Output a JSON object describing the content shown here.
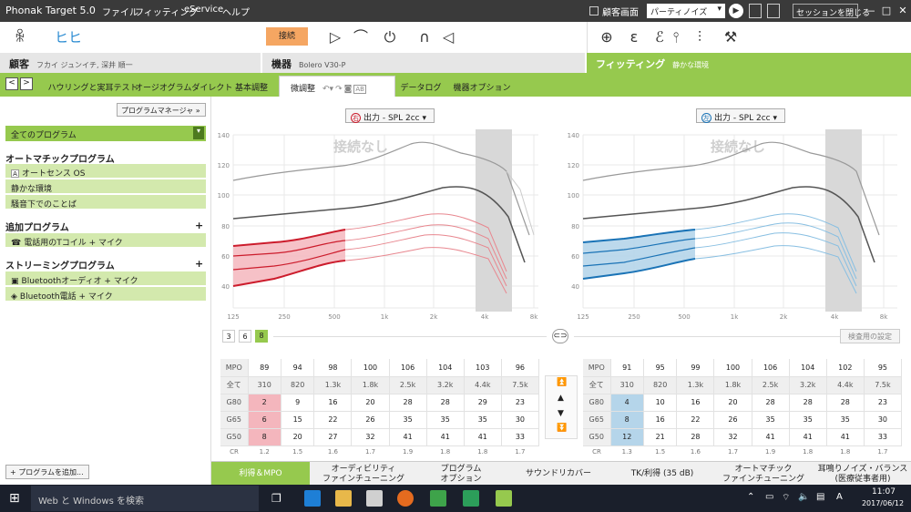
{
  "title_bar": {
    "app": "Phonak Target 5.0",
    "menus": [
      "ファイル",
      "フィッティング",
      "eService",
      "ヘルプ"
    ],
    "client_screen": "顧客画面",
    "noise": "パーティノイズ",
    "close_session": "セッションを閉じる"
  },
  "toolbar": {
    "connect": "接続"
  },
  "info": {
    "client_label": "顧客",
    "client_name": "フカイ ジュンイチ, 深井 順一",
    "device_label": "機器",
    "device_name": "Bolero V30-P",
    "fitting_label": "フィッティング",
    "fitting_sub": "静かな環境"
  },
  "nav": {
    "tabs": [
      "ハウリングと実耳テスト",
      "オージオグラムダイレクト",
      "基本調整",
      "微調整",
      "データログ",
      "機器オプション"
    ],
    "active": "微調整",
    "ab": "AB"
  },
  "sidebar": {
    "program_manager": "プログラムマネージャ",
    "all_programs": "全てのプログラム",
    "auto_head": "オートマチックプログラム",
    "auto_items": [
      "オートセンス OS",
      "静かな環境",
      "騒音下でのことば"
    ],
    "added_head": "追加プログラム",
    "added_items": [
      "電話用のTコイル + マイク"
    ],
    "stream_head": "ストリーミングプログラム",
    "stream_items": [
      "Bluetoothオーディオ + マイク",
      "Bluetooth電話 + マイク"
    ],
    "add_program": "+ プログラムを追加..."
  },
  "charts": {
    "right_sel": "出力 - SPL 2cc",
    "left_sel": "出力 - SPL 2cc",
    "right_mark": "右",
    "left_mark": "左",
    "overlay": "接続なし",
    "y_ticks": [
      "140",
      "120",
      "100",
      "80",
      "60",
      "40"
    ],
    "x_ticks": [
      "125",
      "250",
      "500",
      "1k",
      "2k",
      "4k",
      "8k"
    ],
    "channels": [
      "3",
      "6",
      "8"
    ],
    "active_channel": "8",
    "exam_settings": "検査用の設定"
  },
  "colors": {
    "green": "#96c94e",
    "red": "#cc1c2c",
    "blue": "#1a73b6"
  },
  "right_table": {
    "freqs": [
      "全て",
      "310",
      "820",
      "1.3k",
      "1.8k",
      "2.5k",
      "3.2k",
      "4.4k",
      "7.5k"
    ],
    "mpo": [
      "MPO",
      "89",
      "94",
      "98",
      "100",
      "106",
      "104",
      "103",
      "96"
    ],
    "g80": [
      "G80",
      "2",
      "9",
      "16",
      "20",
      "28",
      "28",
      "29",
      "23"
    ],
    "g65": [
      "G65",
      "6",
      "15",
      "22",
      "26",
      "35",
      "35",
      "35",
      "30"
    ],
    "g50": [
      "G50",
      "8",
      "20",
      "27",
      "32",
      "41",
      "41",
      "41",
      "33"
    ],
    "cr": [
      "CR",
      "1.2",
      "1.5",
      "1.6",
      "1.7",
      "1.9",
      "1.8",
      "1.8",
      "1.7"
    ]
  },
  "left_table": {
    "freqs": [
      "全て",
      "310",
      "820",
      "1.3k",
      "1.8k",
      "2.5k",
      "3.2k",
      "4.4k",
      "7.5k"
    ],
    "mpo": [
      "MPO",
      "91",
      "95",
      "99",
      "100",
      "106",
      "104",
      "102",
      "95"
    ],
    "g80": [
      "G80",
      "4",
      "10",
      "16",
      "20",
      "28",
      "28",
      "28",
      "23"
    ],
    "g65": [
      "G65",
      "8",
      "16",
      "22",
      "26",
      "35",
      "35",
      "35",
      "30"
    ],
    "g50": [
      "G50",
      "12",
      "21",
      "28",
      "32",
      "41",
      "41",
      "41",
      "33"
    ],
    "cr": [
      "CR",
      "1.3",
      "1.5",
      "1.6",
      "1.7",
      "1.9",
      "1.8",
      "1.8",
      "1.7"
    ]
  },
  "bottom_tabs": [
    {
      "l1": "利得＆MPO",
      "l2": ""
    },
    {
      "l1": "オーディビリティ",
      "l2": "ファインチューニング"
    },
    {
      "l1": "プログラム",
      "l2": "オプション"
    },
    {
      "l1": "サウンドリカバー",
      "l2": ""
    },
    {
      "l1": "TK/利得 (35 dB)",
      "l2": ""
    },
    {
      "l1": "オートマチック",
      "l2": "ファインチューニング"
    },
    {
      "l1": "耳鳴りノイズ・バランス",
      "l2": "(医療従事者用)"
    }
  ],
  "taskbar": {
    "search": "Web と Windows を検索",
    "time": "11:07",
    "date": "2017/06/12",
    "ime": "A"
  }
}
